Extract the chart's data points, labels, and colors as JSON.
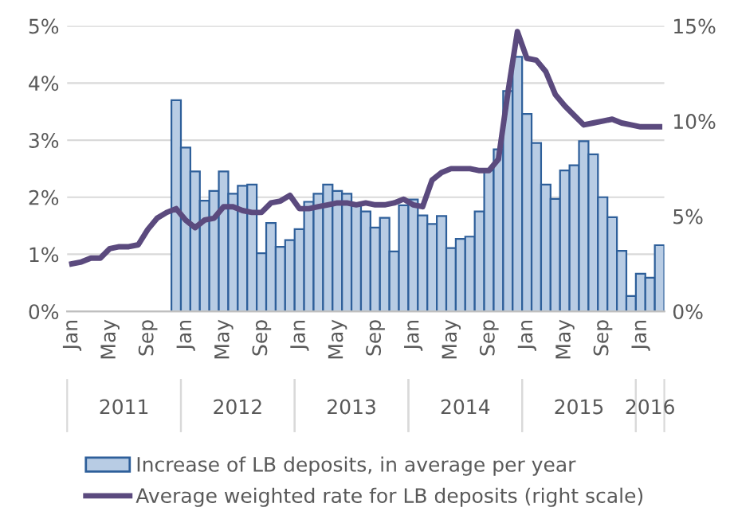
{
  "chart_data": {
    "type": "bar",
    "categories": [
      "Jan",
      null,
      null,
      null,
      "May",
      null,
      null,
      null,
      "Sep",
      null,
      null,
      null,
      "Jan",
      null,
      null,
      null,
      "May",
      null,
      null,
      null,
      "Sep",
      null,
      null,
      null,
      "Jan",
      null,
      null,
      null,
      "May",
      null,
      null,
      null,
      "Sep",
      null,
      null,
      null,
      "Jan",
      null,
      null,
      null,
      "May",
      null,
      null,
      null,
      "Sep",
      null,
      null,
      null,
      "Jan",
      null,
      null,
      null,
      "May",
      null,
      null,
      null,
      "Sep",
      null,
      null,
      null,
      "Jan",
      null,
      null
    ],
    "series": [
      {
        "name": "Increase of LB deposits, in average per year",
        "color": "#b8cce4",
        "values": [
          null,
          null,
          null,
          null,
          null,
          null,
          null,
          null,
          null,
          null,
          null,
          3.7,
          2.87,
          2.45,
          1.94,
          2.11,
          2.45,
          2.06,
          2.2,
          2.22,
          1.02,
          1.55,
          1.13,
          1.25,
          1.44,
          1.92,
          2.06,
          2.22,
          2.11,
          2.06,
          1.85,
          1.75,
          1.47,
          1.64,
          1.05,
          1.86,
          1.96,
          1.68,
          1.53,
          1.67,
          1.11,
          1.27,
          1.31,
          1.75,
          2.47,
          2.84,
          3.86,
          4.46,
          3.46,
          2.95,
          2.22,
          1.97,
          2.47,
          2.56,
          2.98,
          2.75,
          2.0,
          1.65,
          1.06,
          0.27,
          0.66,
          0.59,
          1.16
        ]
      },
      {
        "name": "Average weighted rate for LB deposits (right scale)",
        "type": "line",
        "axis": "y2",
        "color": "#5b4a7e",
        "values": [
          2.5,
          2.6,
          2.8,
          2.8,
          3.3,
          3.4,
          3.4,
          3.5,
          4.3,
          4.9,
          5.2,
          5.4,
          4.8,
          4.4,
          4.8,
          4.9,
          5.5,
          5.5,
          5.3,
          5.2,
          5.2,
          5.7,
          5.8,
          6.1,
          5.4,
          5.4,
          5.5,
          5.6,
          5.7,
          5.7,
          5.6,
          5.7,
          5.6,
          5.6,
          5.7,
          5.9,
          5.6,
          5.5,
          6.9,
          7.3,
          7.5,
          7.5,
          7.5,
          7.4,
          7.4,
          8.0,
          11.5,
          14.7,
          13.3,
          13.2,
          12.6,
          11.4,
          10.8,
          10.3,
          9.8,
          9.9,
          10.0,
          10.1,
          9.9,
          9.8,
          9.7,
          9.7,
          9.7
        ]
      }
    ],
    "ylim": [
      0,
      5
    ],
    "yticks": [
      {
        "value": 0,
        "label": "0%"
      },
      {
        "value": 1,
        "label": "1%"
      },
      {
        "value": 2,
        "label": "2%"
      },
      {
        "value": 3,
        "label": "3%"
      },
      {
        "value": 4,
        "label": "4%"
      },
      {
        "value": 5,
        "label": "5%"
      }
    ],
    "y2lim": [
      0,
      15
    ],
    "y2ticks": [
      {
        "value": 0,
        "label": "0%"
      },
      {
        "value": 5,
        "label": "5%"
      },
      {
        "value": 10,
        "label": "10%"
      },
      {
        "value": 15,
        "label": "15%"
      }
    ],
    "annotations": [
      "2011",
      "2012",
      "2013",
      "2014",
      "2015",
      "2016"
    ],
    "grid": "y",
    "legend": "bottom",
    "line_style": "solid",
    "marker": "none"
  }
}
